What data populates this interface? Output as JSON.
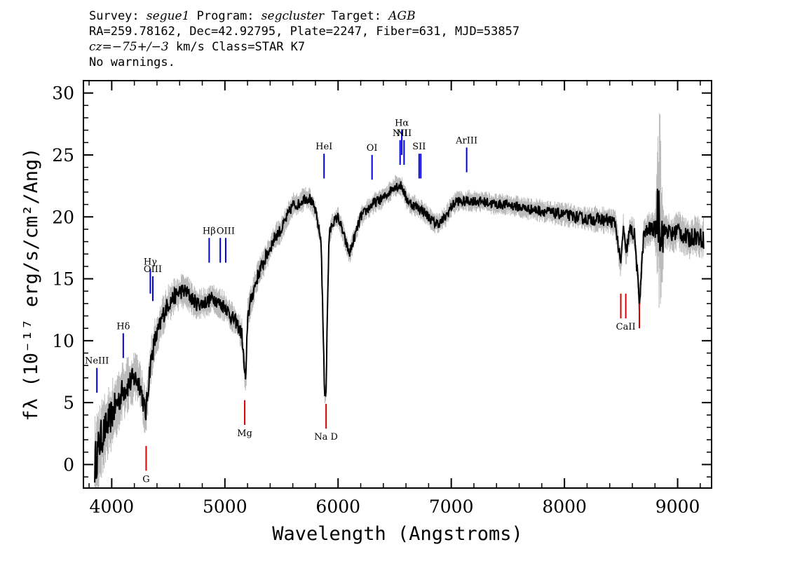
{
  "header": {
    "survey_label": "Survey:",
    "survey": "segue1",
    "program_label": "Program:",
    "program": "segcluster",
    "target_label": "Target:",
    "target": "AGB",
    "line2": "RA=259.78162, Dec=42.92795, Plate=2247, Fiber=631, MJD=53857",
    "cz_label": "cz",
    "cz_value": "=−75+/−3",
    "cz_unit": "km/s",
    "class": "Class=STAR K7",
    "warnings": "No warnings."
  },
  "chart_data": {
    "type": "line",
    "xlabel": "Wavelength (Angstroms)",
    "ylabel": "fλ (10⁻¹⁷ erg/s/cm²/Ang)",
    "xlim": [
      3750,
      9300
    ],
    "ylim": [
      -1.9,
      31
    ],
    "x_ticks": [
      4000,
      5000,
      6000,
      7000,
      8000,
      9000
    ],
    "y_ticks": [
      0,
      5,
      10,
      15,
      20,
      25,
      30
    ],
    "grid": false,
    "series": [
      {
        "role": "flux",
        "color": "#000000",
        "x": [
          3850,
          3900,
          3950,
          4000,
          4050,
          4100,
          4150,
          4200,
          4250,
          4300,
          4340,
          4380,
          4420,
          4450,
          4500,
          4550,
          4600,
          4650,
          4700,
          4750,
          4800,
          4850,
          4900,
          4950,
          5000,
          5050,
          5100,
          5150,
          5170,
          5185,
          5200,
          5250,
          5300,
          5350,
          5400,
          5450,
          5500,
          5550,
          5600,
          5650,
          5700,
          5750,
          5800,
          5850,
          5870,
          5880,
          5893,
          5905,
          5920,
          5950,
          6000,
          6050,
          6100,
          6150,
          6200,
          6250,
          6300,
          6350,
          6400,
          6450,
          6500,
          6563,
          6600,
          6650,
          6700,
          6750,
          6800,
          6850,
          6900,
          6950,
          7000,
          7050,
          7100,
          7150,
          7200,
          7300,
          7400,
          7500,
          7600,
          7700,
          7800,
          7900,
          8000,
          8100,
          8200,
          8300,
          8400,
          8450,
          8498,
          8520,
          8542,
          8580,
          8620,
          8662,
          8700,
          8750,
          8800,
          8840,
          8860,
          8900,
          8950,
          9000,
          9050,
          9100,
          9150,
          9200,
          9230
        ],
        "y": [
          0,
          2,
          3,
          4,
          5,
          6,
          6.5,
          7,
          6.5,
          4,
          8,
          10,
          11,
          12,
          13,
          13.5,
          14,
          14,
          13.5,
          13,
          13,
          13.2,
          13.5,
          13,
          12.8,
          12,
          11.5,
          10.5,
          8,
          6.5,
          12,
          14,
          15.5,
          16.5,
          17.5,
          18.5,
          19,
          20,
          21,
          21,
          21.5,
          21.5,
          20.5,
          18,
          10,
          6,
          5.5,
          12,
          18.5,
          19.5,
          20,
          18.5,
          17,
          18.5,
          20,
          20.5,
          21,
          21.3,
          21.5,
          22,
          22.5,
          22.5,
          21.5,
          21,
          20.8,
          20.5,
          20,
          19.5,
          19.5,
          20,
          20.8,
          21.3,
          21.2,
          21.3,
          21.3,
          21.2,
          21,
          21,
          20.8,
          20.6,
          20.5,
          20.3,
          20.2,
          20,
          19.8,
          19.8,
          19.7,
          19.5,
          16,
          19.3,
          17,
          19,
          18.5,
          13,
          18.5,
          19,
          19,
          21,
          18.5,
          19,
          18.5,
          19,
          18.5,
          18.2,
          18.5,
          18.3,
          18.2
        ]
      },
      {
        "role": "error band",
        "color": "#bbbbbb",
        "x": [
          3850,
          3900,
          3950,
          4000,
          4100,
          4200,
          4300,
          4400,
          4500,
          4600,
          4700,
          4800,
          4900,
          5000,
          5100,
          5200,
          5300,
          5400,
          5500,
          5600,
          5700,
          5800,
          5900,
          6000,
          6100,
          6200,
          6300,
          6400,
          6500,
          6600,
          6700,
          6800,
          6900,
          7000,
          7200,
          7500,
          8000,
          8500,
          8800,
          8840,
          8880,
          9000,
          9230
        ],
        "spread": [
          4,
          3.5,
          3,
          3,
          2.5,
          2.2,
          2,
          1.8,
          1.6,
          1.5,
          1.4,
          1.3,
          1.3,
          1.3,
          1.3,
          1.4,
          1.3,
          1.2,
          1.1,
          1.0,
          1.0,
          0.9,
          0.9,
          0.9,
          0.9,
          0.9,
          0.9,
          0.9,
          0.9,
          0.9,
          0.9,
          0.9,
          0.9,
          0.9,
          0.9,
          0.9,
          1.0,
          1.2,
          1.5,
          9,
          1.6,
          1.6,
          1.8
        ]
      }
    ],
    "lines": [
      {
        "name": "NeIII",
        "wave": 3869,
        "type": "emission",
        "y_top": 7.8,
        "y_bot": 5.8
      },
      {
        "name": "Hδ",
        "wave": 4102,
        "type": "emission",
        "y_top": 10.6,
        "y_bot": 8.6
      },
      {
        "name": "Hγ",
        "wave": 4341,
        "type": "emission",
        "y_top": 15.8,
        "y_bot": 13.8
      },
      {
        "name": "OIII",
        "wave": 4363,
        "type": "emission",
        "y_top": 15.2,
        "y_bot": 13.2
      },
      {
        "name": "Hβ",
        "wave": 4861,
        "type": "emission",
        "y_top": 18.3,
        "y_bot": 16.3
      },
      {
        "name": "",
        "wave": 4959,
        "type": "emission",
        "y_top": 18.3,
        "y_bot": 16.3
      },
      {
        "name": "OIII",
        "wave": 5007,
        "type": "emission",
        "y_top": 18.3,
        "y_bot": 16.3
      },
      {
        "name": "HeI",
        "wave": 5876,
        "type": "emission",
        "y_top": 25.1,
        "y_bot": 23.1
      },
      {
        "name": "OI",
        "wave": 6300,
        "type": "emission",
        "y_top": 25.0,
        "y_bot": 23.0
      },
      {
        "name": "NII",
        "wave": 6548,
        "type": "emission",
        "y_top": 26.2,
        "y_bot": 24.2
      },
      {
        "name": "Hα",
        "wave": 6563,
        "type": "emission",
        "y_top": 27.0,
        "y_bot": 25.0
      },
      {
        "name": "NII",
        "wave": 6583,
        "type": "emission",
        "y_top": 26.2,
        "y_bot": 24.2
      },
      {
        "name": "SII",
        "wave": 6716,
        "type": "emission",
        "y_top": 25.1,
        "y_bot": 23.1
      },
      {
        "name": "",
        "wave": 6731,
        "type": "emission",
        "y_top": 25.1,
        "y_bot": 23.1
      },
      {
        "name": "ArIII",
        "wave": 7136,
        "type": "emission",
        "y_top": 25.6,
        "y_bot": 23.6
      },
      {
        "name": "G",
        "wave": 4304,
        "type": "absorption",
        "y_top": 1.5,
        "y_bot": -0.5
      },
      {
        "name": "Mg",
        "wave": 5175,
        "type": "absorption",
        "y_top": 5.2,
        "y_bot": 3.2
      },
      {
        "name": "Na D",
        "wave": 5894,
        "type": "absorption",
        "y_top": 4.9,
        "y_bot": 2.9
      },
      {
        "name": "",
        "wave": 8498,
        "type": "absorption",
        "y_top": 13.8,
        "y_bot": 11.8
      },
      {
        "name": "CaII",
        "wave": 8542,
        "type": "absorption",
        "y_top": 13.8,
        "y_bot": 11.8
      },
      {
        "name": "",
        "wave": 8662,
        "type": "absorption",
        "y_top": 13.0,
        "y_bot": 11.0
      }
    ],
    "emission_color": "#0000dd",
    "absorption_color": "#dd0000"
  }
}
